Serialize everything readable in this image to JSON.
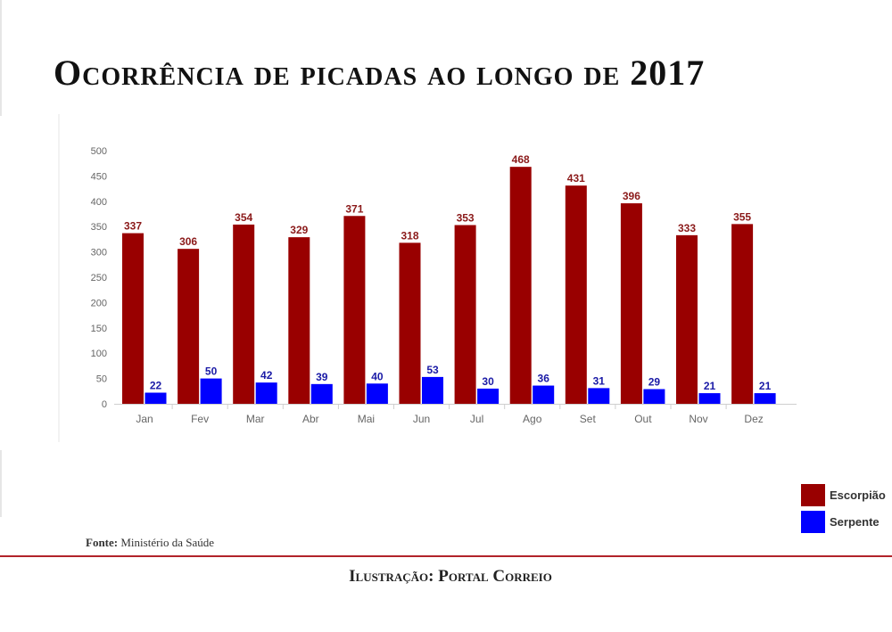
{
  "title": "Ocorrência de picadas ao longo de 2017",
  "source": {
    "label": "Fonte:",
    "text": " Ministério da Saúde"
  },
  "credit": "Ilustração: Portal Correio",
  "chart_data": {
    "type": "bar",
    "categories": [
      "Jan",
      "Fev",
      "Mar",
      "Abr",
      "Mai",
      "Jun",
      "Jul",
      "Ago",
      "Set",
      "Out",
      "Nov",
      "Dez"
    ],
    "series": [
      {
        "name": "Escorpião",
        "color": "#990000",
        "label_color": "#8b1a1a",
        "values": [
          337,
          306,
          354,
          329,
          371,
          318,
          353,
          468,
          431,
          396,
          333,
          355
        ]
      },
      {
        "name": "Serpente",
        "color": "#0000ff",
        "label_color": "#1a1aa6",
        "values": [
          22,
          50,
          42,
          39,
          40,
          53,
          30,
          36,
          31,
          29,
          21,
          21
        ]
      }
    ],
    "yticks": [
      "0",
      "50",
      "100",
      "150",
      "200",
      "250",
      "300",
      "350",
      "400",
      "450",
      "500"
    ],
    "ylim": [
      0,
      500
    ],
    "grid": false,
    "legend_position": "bottom-right"
  }
}
